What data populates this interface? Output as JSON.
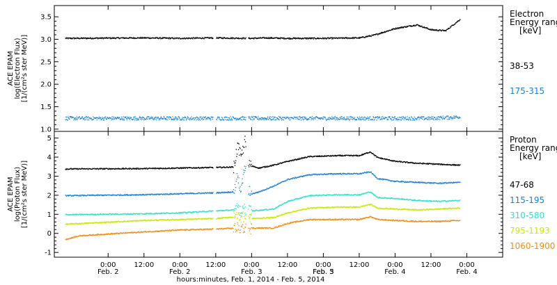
{
  "colors": {
    "black": "#000000",
    "blue": "#1a7fd6",
    "cyan": "#2ee0c8",
    "yellow": "#c8e600",
    "orange": "#f08a10"
  },
  "chart_data": [
    {
      "type": "scatter",
      "ylabel": [
        "ACE EPAM",
        "log(Electron Flux)",
        "[1/(cm²s ster MeV)]"
      ],
      "ylim": [
        0.95,
        3.75
      ],
      "yticks": [
        1.0,
        1.5,
        2.0,
        2.5,
        3.0,
        3.5
      ],
      "ytick_labels": [
        "1.0",
        "1.5",
        "2.0",
        "2.5",
        "3.0",
        "3.5"
      ],
      "legend_title": [
        "Electron",
        "Energy ranges",
        "[keV]"
      ],
      "series": [
        {
          "name": "38-53",
          "color": "#000000",
          "x": [
            -0.6,
            0.5,
            1.0,
            1.5,
            2.0,
            2.2,
            2.5,
            3.0,
            3.5,
            3.7,
            4.0,
            4.3,
            4.5,
            4.7,
            4.9
          ],
          "y": [
            3.03,
            3.04,
            3.03,
            3.04,
            3.03,
            3.04,
            3.03,
            3.03,
            3.04,
            3.1,
            3.25,
            3.33,
            3.22,
            3.2,
            3.45
          ]
        },
        {
          "name": "175-315",
          "color": "#1a7fd6",
          "x": [
            -0.6,
            0.5,
            1.5,
            2.5,
            3.5,
            4.5,
            4.9
          ],
          "y": [
            1.25,
            1.25,
            1.25,
            1.25,
            1.25,
            1.25,
            1.28
          ]
        }
      ]
    },
    {
      "type": "scatter",
      "ylabel": [
        "ACE EPAM",
        "log(Proton Flux)",
        "[1/(cm²s ster MeV)]"
      ],
      "ylim": [
        -1.25,
        5.35
      ],
      "yticks": [
        -1,
        0,
        1,
        2,
        3,
        4,
        5
      ],
      "ytick_labels": [
        "-1",
        "0",
        "1",
        "2",
        "3",
        "4",
        "5"
      ],
      "legend_title": [
        "Proton",
        "Energy ranges",
        "[keV]"
      ],
      "series": [
        {
          "name": "47-68",
          "color": "#000000",
          "x": [
            -0.6,
            0.5,
            1.0,
            1.5,
            1.75,
            1.8,
            1.85,
            1.9,
            1.95,
            2.0,
            2.1,
            2.3,
            2.5,
            2.8,
            3.2,
            3.5,
            3.65,
            3.75,
            4.0,
            4.3,
            4.6,
            4.9
          ],
          "y": [
            3.4,
            3.42,
            3.45,
            3.48,
            3.5,
            4.6,
            4.0,
            4.9,
            3.6,
            3.55,
            3.45,
            3.6,
            3.8,
            4.05,
            4.1,
            4.1,
            4.3,
            4.0,
            3.8,
            3.7,
            3.65,
            3.6
          ]
        },
        {
          "name": "115-195",
          "color": "#1a7fd6",
          "x": [
            -0.6,
            0.5,
            1.0,
            1.5,
            1.75,
            1.8,
            1.85,
            1.9,
            1.95,
            2.0,
            2.1,
            2.3,
            2.5,
            2.8,
            3.2,
            3.5,
            3.65,
            3.75,
            4.0,
            4.3,
            4.6,
            4.9
          ],
          "y": [
            2.0,
            2.05,
            2.1,
            2.15,
            2.2,
            3.0,
            2.2,
            3.6,
            2.3,
            2.1,
            2.2,
            2.5,
            2.85,
            3.1,
            3.15,
            3.15,
            3.25,
            2.9,
            2.75,
            2.7,
            2.65,
            2.7
          ]
        },
        {
          "name": "310-580",
          "color": "#2ee0c8",
          "x": [
            -0.6,
            0.5,
            1.0,
            1.5,
            1.75,
            1.8,
            1.85,
            1.9,
            2.0,
            2.3,
            2.5,
            2.8,
            3.2,
            3.5,
            3.65,
            3.75,
            4.0,
            4.3,
            4.6,
            4.9
          ],
          "y": [
            1.0,
            1.05,
            1.1,
            1.2,
            1.25,
            1.5,
            1.1,
            1.3,
            1.2,
            1.3,
            1.7,
            2.0,
            2.05,
            2.05,
            2.2,
            1.9,
            1.85,
            1.75,
            1.7,
            1.75
          ]
        },
        {
          "name": "795-1193",
          "color": "#c8e600",
          "x": [
            -0.6,
            0.5,
            1.0,
            1.5,
            1.8,
            2.0,
            2.3,
            2.5,
            2.8,
            3.2,
            3.5,
            3.65,
            3.75,
            4.0,
            4.3,
            4.6,
            4.9
          ],
          "y": [
            0.5,
            0.7,
            0.75,
            0.8,
            0.9,
            0.8,
            0.85,
            1.1,
            1.35,
            1.4,
            1.4,
            1.55,
            1.35,
            1.3,
            1.25,
            1.3,
            1.35
          ]
        },
        {
          "name": "1060-1900",
          "color": "#f08a10",
          "x": [
            -0.6,
            -0.4,
            0.5,
            1.0,
            1.5,
            1.8,
            2.0,
            2.3,
            2.5,
            2.8,
            3.2,
            3.5,
            3.65,
            3.75,
            4.0,
            4.3,
            4.6,
            4.9
          ],
          "y": [
            -0.3,
            -0.1,
            0.1,
            0.2,
            0.25,
            0.3,
            0.3,
            0.3,
            0.55,
            0.75,
            0.75,
            0.75,
            0.9,
            0.75,
            0.7,
            0.65,
            0.65,
            0.7
          ]
        }
      ]
    }
  ],
  "x_axis": {
    "xlim": [
      -0.75,
      5.5
    ],
    "ticks": [
      0,
      0.5,
      1,
      1.5,
      2,
      2.5,
      3,
      3.5,
      4,
      4.5,
      5
    ],
    "tick_time_labels": [
      "0:00",
      "12:00",
      "0:00",
      "12:00",
      "0:00",
      "12:00",
      "0:00",
      "12:00",
      "0:00",
      "12:00",
      "0:00"
    ],
    "tick_date_labels": [
      "Feb. 2",
      "Feb. 2",
      "Feb. 3",
      "Feb. 3",
      "Feb. 4",
      "Feb. 4",
      "Feb. 5"
    ],
    "tick_date_positions": [
      0,
      0.5,
      1,
      1.5,
      2,
      2.5,
      3
    ],
    "title": "hours:minutes, Feb.  1, 2014 - Feb.  5, 2014"
  }
}
